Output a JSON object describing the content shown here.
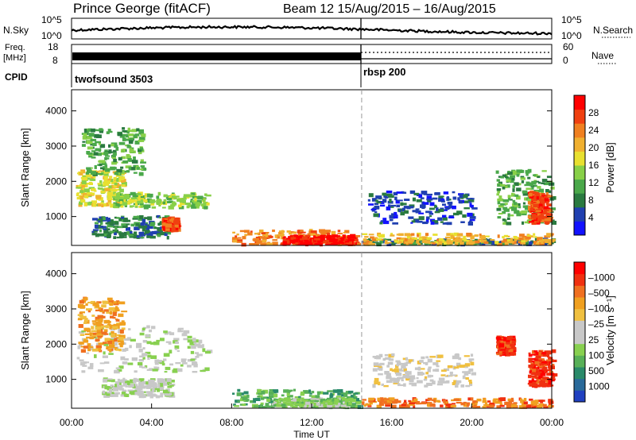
{
  "header": {
    "station": "Prince George (fitACF)",
    "beam_date": "Beam 12  15/Aug/2015 – 16/Aug/2015"
  },
  "summary_panels": {
    "nsky": {
      "label": "N.Sky",
      "ticks": [
        "10^5",
        "10^0"
      ],
      "right_label": "N.Search",
      "right_ticks": [
        "10^5",
        "10^0"
      ]
    },
    "freq": {
      "label_line1": "Freq.",
      "label_line2": "[MHz]",
      "ticks": [
        "18",
        "8"
      ],
      "right_label": "Nave",
      "right_ticks": [
        "60",
        "0"
      ]
    },
    "cpid": {
      "label": "CPID",
      "modes": [
        {
          "name": "twofsound 3503",
          "start": "00:00",
          "end": "14:30"
        },
        {
          "name": "rbsp 200",
          "start": "14:30",
          "end": "24:00"
        }
      ]
    }
  },
  "chart_data": [
    {
      "type": "heatmap",
      "title": "",
      "xlabel": "Time UT",
      "ylabel": "Slant Range [km]",
      "xlim": [
        0,
        24
      ],
      "ylim": [
        180,
        4600
      ],
      "x_ticks": [
        "00:00",
        "04:00",
        "08:00",
        "12:00",
        "16:00",
        "20:00",
        "00:00"
      ],
      "y_ticks": [
        "1000",
        "2000",
        "3000",
        "4000"
      ],
      "y_tick_values": [
        1000,
        2000,
        3000,
        4000
      ],
      "colorbar_label": "Power [dB]",
      "colorbar_ticks": [
        "4",
        "8",
        "12",
        "16",
        "20",
        "24",
        "28"
      ],
      "colorbar_colors": [
        "#1212ff",
        "#2040b0",
        "#2a7a40",
        "#4aa84a",
        "#88d048",
        "#e8e030",
        "#f0b030",
        "#f08020",
        "#f04010",
        "#ff0000"
      ],
      "mode_change_time": 14.5,
      "regions": [
        {
          "t0": 0.2,
          "t1": 2.6,
          "r0": 1300,
          "r1": 2300,
          "level": 5
        },
        {
          "t0": 2.0,
          "t1": 6.8,
          "r0": 1250,
          "r1": 1650,
          "level": 4
        },
        {
          "t0": 0.5,
          "t1": 3.5,
          "r0": 2200,
          "r1": 3500,
          "level": 3
        },
        {
          "t0": 1.0,
          "t1": 5.0,
          "r0": 400,
          "r1": 1000,
          "level": 2
        },
        {
          "t0": 4.5,
          "t1": 5.2,
          "r0": 600,
          "r1": 950,
          "level": 8
        },
        {
          "t0": 8.0,
          "t1": 14.3,
          "r0": 200,
          "r1": 600,
          "level": 7
        },
        {
          "t0": 10.5,
          "t1": 14.0,
          "r0": 200,
          "r1": 450,
          "level": 9
        },
        {
          "t0": 14.5,
          "t1": 24.0,
          "r0": 200,
          "r1": 350,
          "level": 2
        },
        {
          "t0": 14.8,
          "t1": 20.0,
          "r0": 800,
          "r1": 1700,
          "level": 1
        },
        {
          "t0": 21.2,
          "t1": 24.0,
          "r0": 800,
          "r1": 2300,
          "level": 3
        },
        {
          "t0": 22.8,
          "t1": 23.8,
          "r0": 800,
          "r1": 1700,
          "level": 8
        },
        {
          "t0": 14.5,
          "t1": 24.0,
          "r0": 200,
          "r1": 500,
          "level": 6
        }
      ]
    },
    {
      "type": "heatmap",
      "title": "",
      "xlabel": "Time UT",
      "ylabel": "Slant Range [km]",
      "xlim": [
        0,
        24
      ],
      "ylim": [
        180,
        4600
      ],
      "x_ticks": [
        "00:00",
        "04:00",
        "08:00",
        "12:00",
        "16:00",
        "20:00",
        "00:00"
      ],
      "y_ticks": [
        "1000",
        "2000",
        "3000",
        "4000"
      ],
      "y_tick_values": [
        1000,
        2000,
        3000,
        4000
      ],
      "colorbar_label": "Velocity [m s⁻¹]",
      "colorbar_ticks": [
        "1000",
        "500",
        "100",
        "25",
        "–25",
        "–100",
        "–500",
        "–1000"
      ],
      "colorbar_colors": [
        "#2040c0",
        "#2a6a9a",
        "#2a8a6a",
        "#58b058",
        "#88d050",
        "#c8c8c8",
        "#c8c8c8",
        "#f0c040",
        "#f0a020",
        "#f07020",
        "#f03010",
        "#ff0000"
      ],
      "mode_change_time": 14.5,
      "regions": [
        {
          "t0": 0.2,
          "t1": 6.8,
          "r0": 1200,
          "r1": 2500,
          "level": 5
        },
        {
          "t0": 0.3,
          "t1": 2.5,
          "r0": 1800,
          "r1": 3300,
          "level": 8
        },
        {
          "t0": 1.5,
          "t1": 5.0,
          "r0": 500,
          "r1": 1000,
          "level": 5
        },
        {
          "t0": 8.0,
          "t1": 14.3,
          "r0": 200,
          "r1": 700,
          "level": 3
        },
        {
          "t0": 10.0,
          "t1": 14.0,
          "r0": 200,
          "r1": 450,
          "level": 4
        },
        {
          "t0": 14.5,
          "t1": 24.0,
          "r0": 200,
          "r1": 450,
          "level": 9
        },
        {
          "t0": 15.0,
          "t1": 20.0,
          "r0": 800,
          "r1": 1700,
          "level": 6
        },
        {
          "t0": 21.2,
          "t1": 22.0,
          "r0": 1700,
          "r1": 2200,
          "level": 10
        },
        {
          "t0": 22.8,
          "t1": 24.0,
          "r0": 800,
          "r1": 1800,
          "level": 10
        }
      ]
    }
  ]
}
